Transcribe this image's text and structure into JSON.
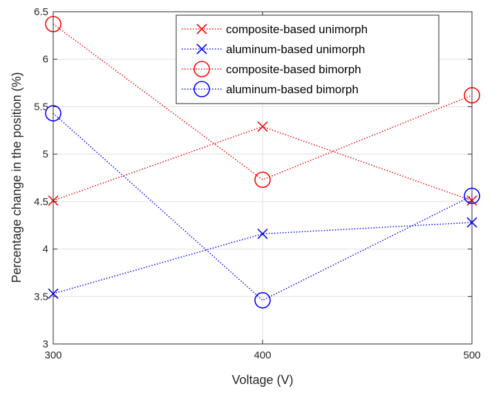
{
  "chart_data": {
    "type": "line",
    "title": "",
    "xlabel": "Voltage (V)",
    "ylabel": "Percentage change in the position (%)",
    "x": [
      300,
      400,
      500
    ],
    "xlim": [
      300,
      500
    ],
    "ylim": [
      3,
      6.5
    ],
    "xticks": [
      "300",
      "400",
      "500"
    ],
    "yticks": [
      "3",
      "3.5",
      "4",
      "4.5",
      "5",
      "5.5",
      "6",
      "6.5"
    ],
    "grid": true,
    "legend_position": "top-right",
    "series": [
      {
        "name": "composite-based unimorph",
        "values": [
          4.51,
          5.29,
          4.51
        ],
        "color": "#ff0000",
        "marker": "x",
        "line_style": "dotted"
      },
      {
        "name": "aluminum-based unimorph",
        "values": [
          3.53,
          4.16,
          4.28
        ],
        "color": "#0000ff",
        "marker": "x",
        "line_style": "dotted"
      },
      {
        "name": "composite-based bimorph",
        "values": [
          6.37,
          4.73,
          5.62
        ],
        "color": "#ff0000",
        "marker": "o",
        "line_style": "dotted"
      },
      {
        "name": "aluminum-based bimorph",
        "values": [
          5.43,
          3.46,
          4.56
        ],
        "color": "#0000ff",
        "marker": "o",
        "line_style": "dotted"
      }
    ]
  }
}
